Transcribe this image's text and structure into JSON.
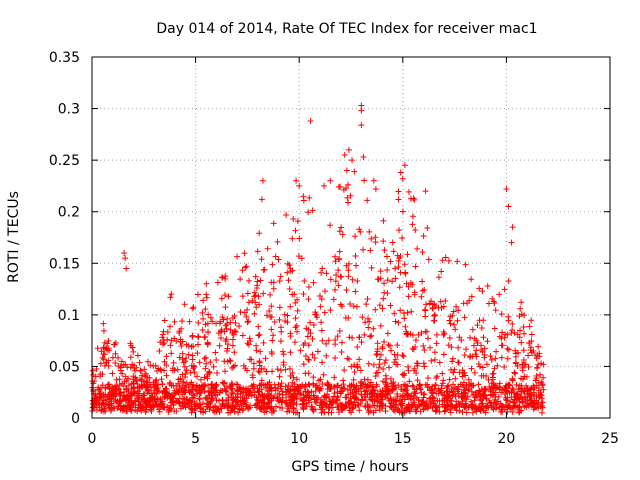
{
  "chart_data": {
    "type": "scatter",
    "title": "Day 014 of 2014, Rate Of TEC Index for receiver mac1",
    "xlabel": "GPS time / hours",
    "ylabel": "ROTI / TECUs",
    "xlim": [
      0,
      25
    ],
    "ylim": [
      0,
      0.35
    ],
    "xticks": [
      0,
      5,
      10,
      15,
      20,
      25
    ],
    "xtick_labels": [
      "0",
      "5",
      "10",
      "15",
      "20",
      "25"
    ],
    "yticks": [
      0,
      0.05,
      0.1,
      0.15,
      0.2,
      0.25,
      0.3,
      0.35
    ],
    "ytick_labels": [
      "0",
      "0.05",
      "0.1",
      "0.15",
      "0.2",
      "0.25",
      "0.3",
      "0.35"
    ],
    "grid": true,
    "marker": "+",
    "color": "#ff0000",
    "series": [
      {
        "name": "ROTI",
        "x_range": [
          0,
          21.8
        ],
        "density_note": "dense point cloud, baseline ~0.01-0.03, envelope peaks near 10-14 h",
        "envelope": {
          "x": [
            0,
            0.5,
            1.5,
            2,
            3,
            3.8,
            4.5,
            5.5,
            6.5,
            7.5,
            8.5,
            9.5,
            10.5,
            11.5,
            12.5,
            13.2,
            14,
            15,
            16,
            17,
            18,
            19,
            20,
            21,
            21.8
          ],
          "y": [
            0.035,
            0.095,
            0.07,
            0.06,
            0.04,
            0.12,
            0.1,
            0.12,
            0.13,
            0.17,
            0.18,
            0.2,
            0.21,
            0.2,
            0.24,
            0.22,
            0.18,
            0.23,
            0.18,
            0.15,
            0.14,
            0.12,
            0.13,
            0.1,
            0.05
          ]
        },
        "outliers": [
          {
            "x": 1.55,
            "y": 0.16
          },
          {
            "x": 1.6,
            "y": 0.155
          },
          {
            "x": 1.65,
            "y": 0.145
          },
          {
            "x": 8.25,
            "y": 0.23
          },
          {
            "x": 8.2,
            "y": 0.212
          },
          {
            "x": 9.85,
            "y": 0.23
          },
          {
            "x": 10.0,
            "y": 0.225
          },
          {
            "x": 10.2,
            "y": 0.215
          },
          {
            "x": 10.55,
            "y": 0.288
          },
          {
            "x": 11.2,
            "y": 0.225
          },
          {
            "x": 11.5,
            "y": 0.23
          },
          {
            "x": 12.2,
            "y": 0.255
          },
          {
            "x": 12.4,
            "y": 0.26
          },
          {
            "x": 12.55,
            "y": 0.25
          },
          {
            "x": 12.3,
            "y": 0.24
          },
          {
            "x": 13.0,
            "y": 0.303
          },
          {
            "x": 13.0,
            "y": 0.298
          },
          {
            "x": 13.0,
            "y": 0.284
          },
          {
            "x": 13.1,
            "y": 0.253
          },
          {
            "x": 13.6,
            "y": 0.23
          },
          {
            "x": 13.7,
            "y": 0.222
          },
          {
            "x": 15.1,
            "y": 0.245
          },
          {
            "x": 14.9,
            "y": 0.238
          },
          {
            "x": 15.0,
            "y": 0.232
          },
          {
            "x": 16.1,
            "y": 0.22
          },
          {
            "x": 20.0,
            "y": 0.222
          },
          {
            "x": 20.1,
            "y": 0.205
          },
          {
            "x": 20.3,
            "y": 0.185
          },
          {
            "x": 20.25,
            "y": 0.17
          }
        ]
      }
    ]
  }
}
